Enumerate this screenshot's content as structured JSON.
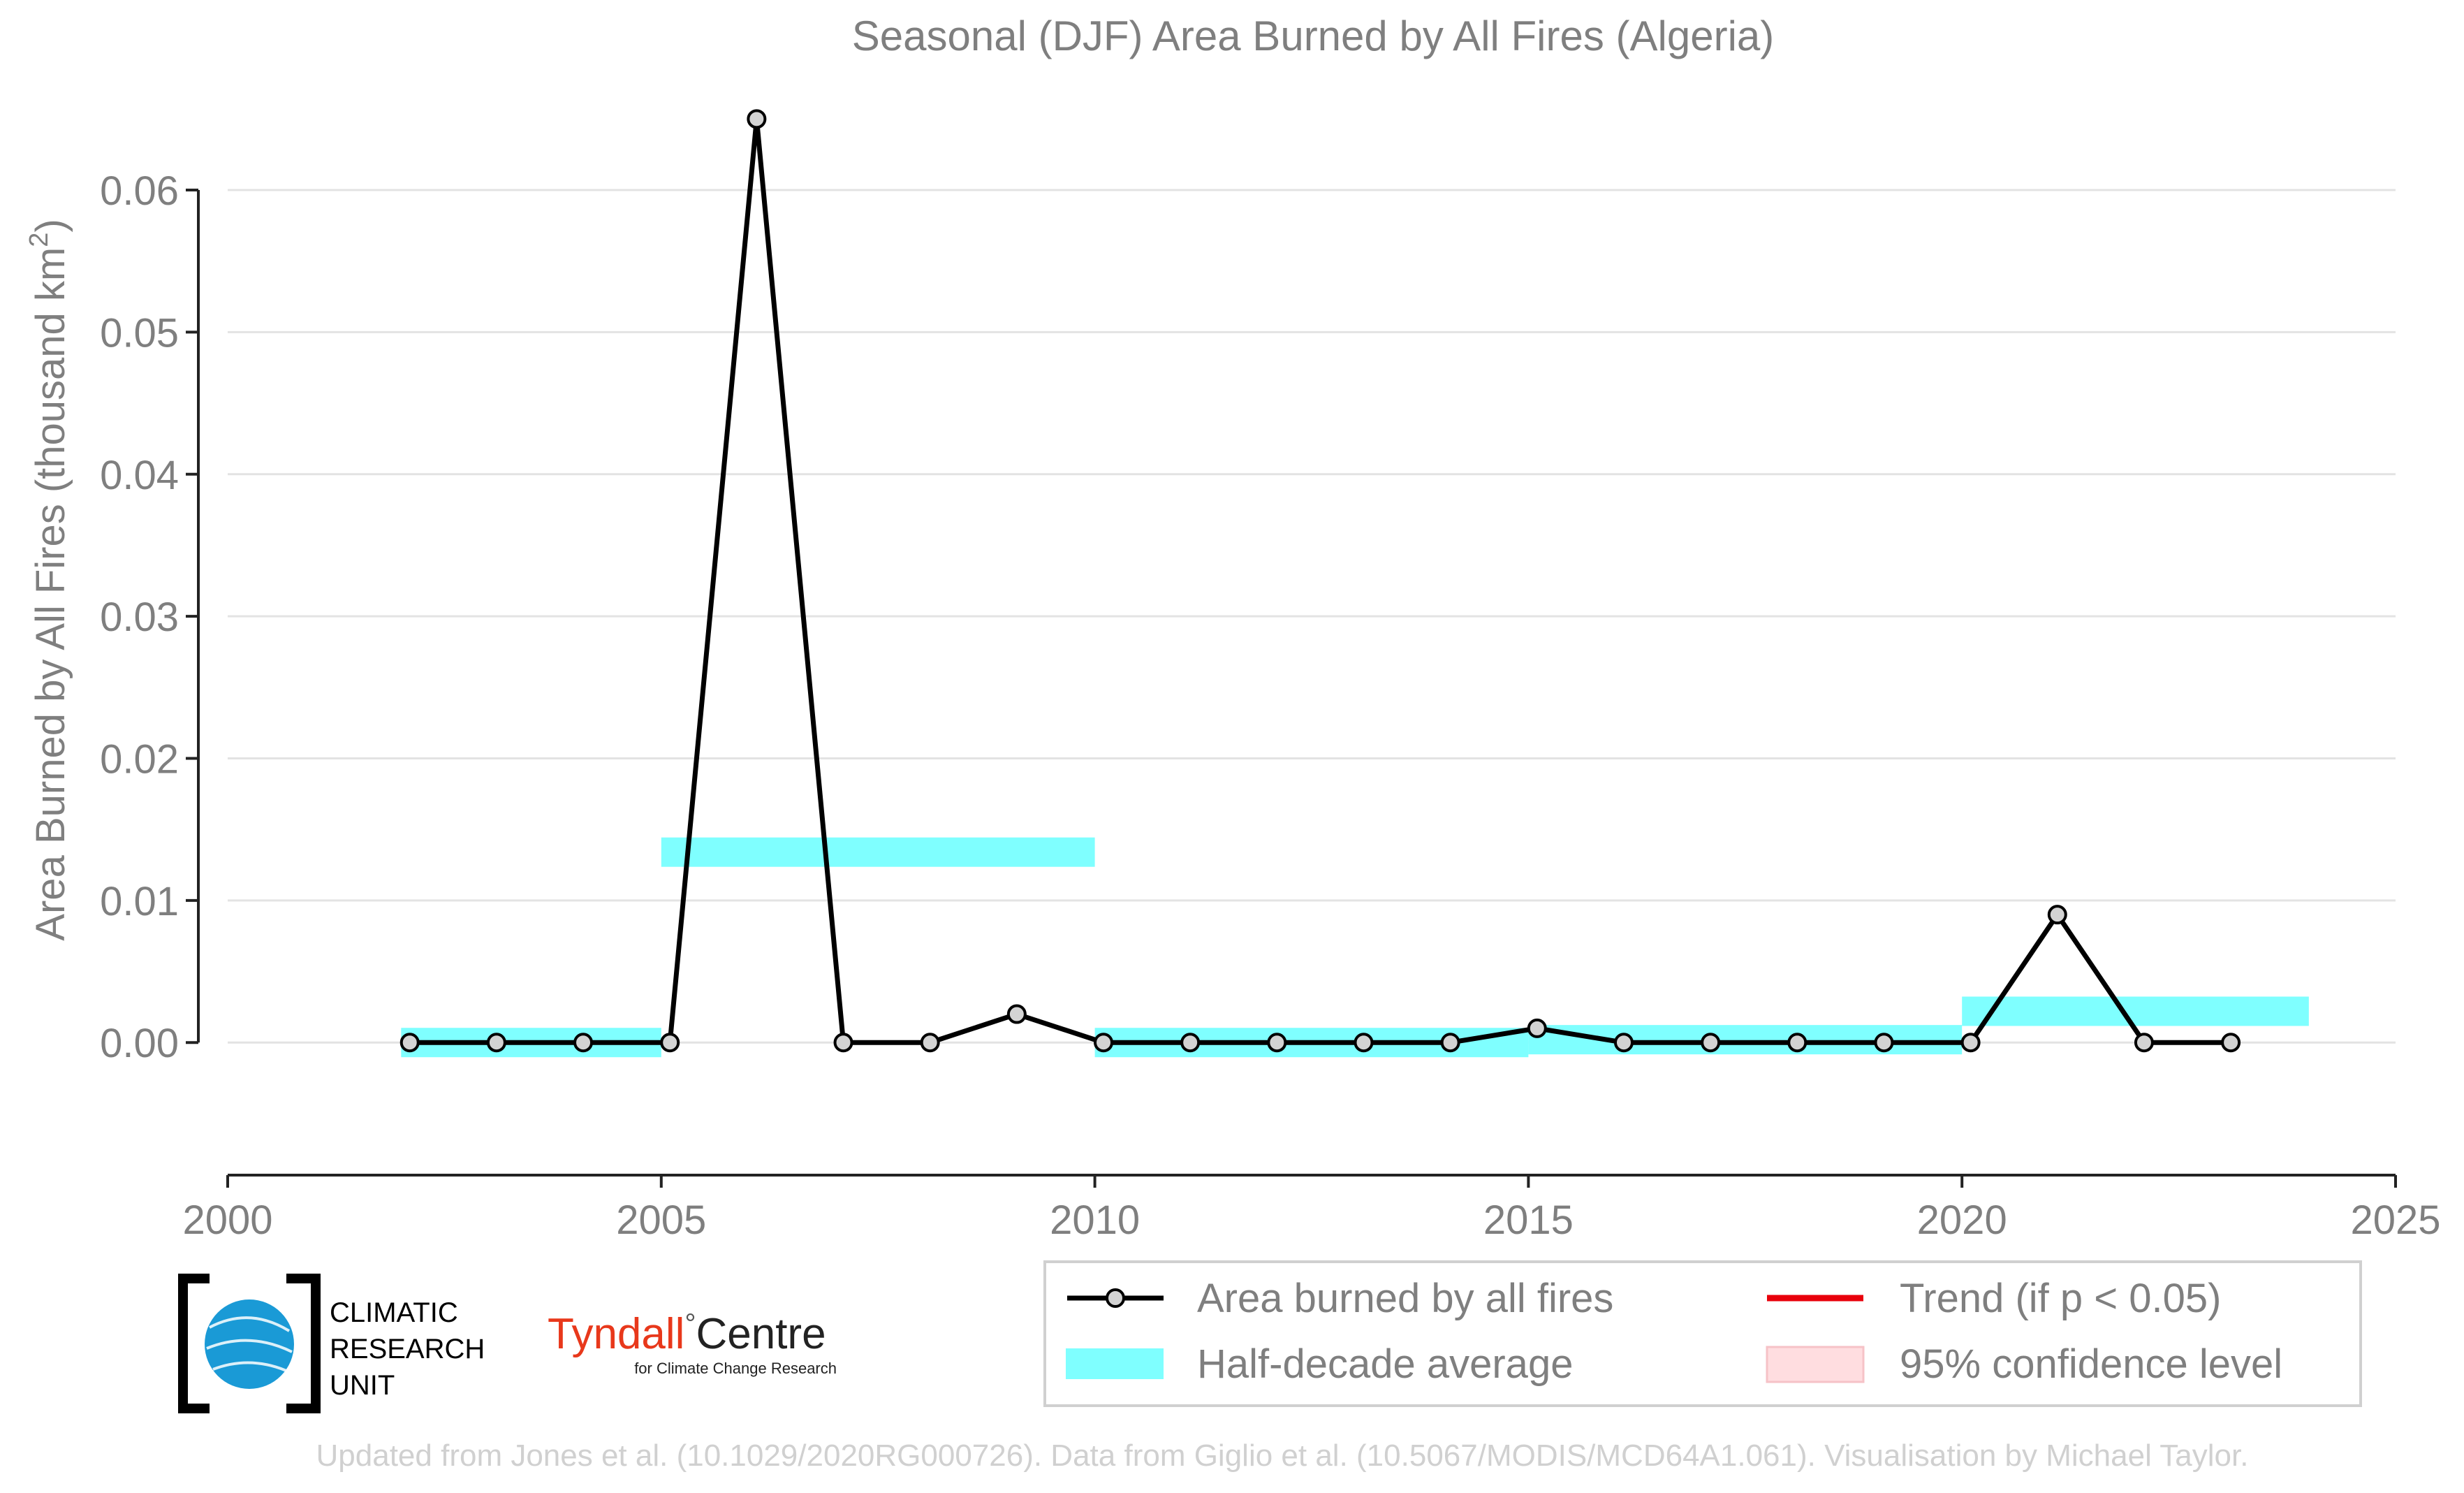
{
  "chart_data": {
    "type": "line",
    "title": "Seasonal (DJF) Area Burned by All Fires (Algeria)",
    "ylabel_main": "Area Burned by All Fires (thousand km",
    "ylabel_sup": "2",
    "ylabel_close": ")",
    "xlim": [
      2000,
      2025
    ],
    "ylim": [
      -0.0053,
      0.066
    ],
    "x_ticks": [
      2000,
      2005,
      2010,
      2015,
      2020,
      2025
    ],
    "y_ticks": [
      0.0,
      0.01,
      0.02,
      0.03,
      0.04,
      0.05,
      0.06
    ],
    "y_tick_labels": [
      "0.00",
      "0.01",
      "0.02",
      "0.03",
      "0.04",
      "0.05",
      "0.06"
    ],
    "grid": "horizontal",
    "series": [
      {
        "name": "Area burned by all fires",
        "color": "#000000",
        "marker_fill": "#d3d3d3",
        "x": [
          2002.1,
          2003.1,
          2004.1,
          2005.1,
          2006.1,
          2007.1,
          2008.1,
          2009.1,
          2010.1,
          2011.1,
          2012.1,
          2013.1,
          2014.1,
          2015.1,
          2016.1,
          2017.1,
          2018.1,
          2019.1,
          2020.1,
          2021.1,
          2022.1,
          2023.1
        ],
        "y": [
          0.0,
          0.0,
          0.0,
          0.0,
          0.065,
          0.0,
          0.0,
          0.002,
          0.0,
          0.0,
          0.0,
          0.0,
          0.0,
          0.001,
          0.0,
          0.0,
          0.0,
          0.0,
          0.0,
          0.009,
          0.0,
          0.0
        ]
      }
    ],
    "half_decade_average": {
      "name": "Half-decade average",
      "color": "#7fffff",
      "segments": [
        {
          "x0": 2002.0,
          "x1": 2005.0,
          "y": 0.0
        },
        {
          "x0": 2005.0,
          "x1": 2010.0,
          "y": 0.0134
        },
        {
          "x0": 2010.0,
          "x1": 2015.0,
          "y": 0.0
        },
        {
          "x0": 2015.0,
          "x1": 2020.0,
          "y": 0.0002
        },
        {
          "x0": 2020.0,
          "x1": 2024.0,
          "y": 0.0022
        }
      ]
    },
    "legend": {
      "placement": "bottom-right",
      "entries": [
        {
          "label": "Area burned by all fires",
          "kind": "line-marker",
          "color": "#000000"
        },
        {
          "label": "Trend (if p < 0.05)",
          "kind": "line",
          "color": "#e8000b"
        },
        {
          "label": "Half-decade average",
          "kind": "band",
          "color": "#7fffff"
        },
        {
          "label": "95% confidence level",
          "kind": "patch",
          "color": "#ffdde0"
        }
      ]
    }
  },
  "logos": {
    "cru_line1": "CLIMATIC",
    "cru_line2": "RESEARCH",
    "cru_line3": "UNIT",
    "tyndall_name": "Tyndall",
    "tyndall_degree": "°",
    "tyndall_centre": "Centre",
    "tyndall_sub": "for Climate Change Research"
  },
  "footer": {
    "credit": "Updated from Jones et al. (10.1029/2020RG000726). Data from Giglio et al. (10.5067/MODIS/MCD64A1.061). Visualisation by Michael Taylor."
  },
  "colors": {
    "text_gray": "#7f7f7f",
    "grid": "#e3e3e3",
    "axis": "#222222",
    "footer_gray": "#d0d0d0",
    "tyndall_red": "#e8381b",
    "cru_blue": "#1a9ad6"
  }
}
